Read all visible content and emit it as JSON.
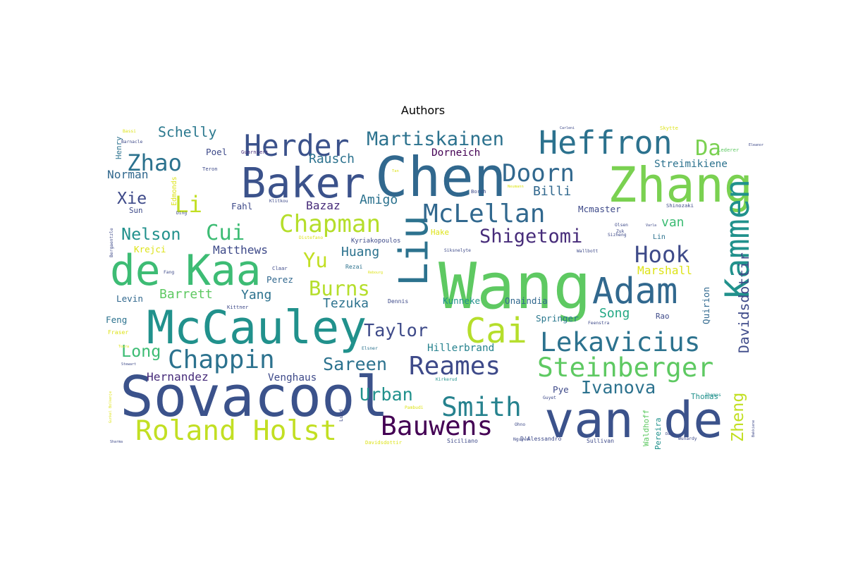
{
  "chart_data": {
    "type": "wordcloud",
    "title": "Authors",
    "colormap": "viridis",
    "words": [
      {
        "text": "Wang",
        "weight": 100,
        "color": "#5ec962"
      },
      {
        "text": "Sovacool",
        "weight": 88,
        "color": "#3b528b"
      },
      {
        "text": "Chen",
        "weight": 86,
        "color": "#31688e"
      },
      {
        "text": "van de",
        "weight": 78,
        "color": "#3b528b"
      },
      {
        "text": "Zhang",
        "weight": 76,
        "color": "#7ad151"
      },
      {
        "text": "McCauley",
        "weight": 72,
        "color": "#21918c"
      },
      {
        "text": "de Kaa",
        "weight": 66,
        "color": "#3dbc74"
      },
      {
        "text": "Baker",
        "weight": 65,
        "color": "#3b528b"
      },
      {
        "text": "Liu",
        "weight": 62,
        "color": "#2c728e"
      },
      {
        "text": "Adam",
        "weight": 56,
        "color": "#31688e"
      },
      {
        "text": "Cai",
        "weight": 54,
        "color": "#b5de2b"
      },
      {
        "text": "Kammen",
        "weight": 52,
        "color": "#21918c"
      },
      {
        "text": "Heffron",
        "weight": 50,
        "color": "#2c728e"
      },
      {
        "text": "Herder",
        "weight": 46,
        "color": "#3b528b"
      },
      {
        "text": "Roland Holst",
        "weight": 44,
        "color": "#c2df23"
      },
      {
        "text": "Bauwens",
        "weight": 42,
        "color": "#440154"
      },
      {
        "text": "Smith",
        "weight": 42,
        "color": "#26828e"
      },
      {
        "text": "Steinberger",
        "weight": 42,
        "color": "#5ec962"
      },
      {
        "text": "Lekavicius",
        "weight": 42,
        "color": "#2c728e"
      },
      {
        "text": "Chappin",
        "weight": 40,
        "color": "#2c728e"
      },
      {
        "text": "Reames",
        "weight": 40,
        "color": "#3e4a89"
      },
      {
        "text": "McLellan",
        "weight": 40,
        "color": "#31688e"
      },
      {
        "text": "Doorn",
        "weight": 38,
        "color": "#31688e"
      },
      {
        "text": "Chapman",
        "weight": 38,
        "color": "#b5de2b"
      },
      {
        "text": "Zhao",
        "weight": 36,
        "color": "#2c728e"
      },
      {
        "text": "Hook",
        "weight": 36,
        "color": "#3e4a89"
      },
      {
        "text": "Li",
        "weight": 36,
        "color": "#c2df23"
      },
      {
        "text": "Cui",
        "weight": 34,
        "color": "#3dbc74"
      },
      {
        "text": "Da",
        "weight": 34,
        "color": "#7ad151"
      },
      {
        "text": "Burns",
        "weight": 32,
        "color": "#b5de2b"
      },
      {
        "text": "Yu",
        "weight": 32,
        "color": "#c2df23"
      },
      {
        "text": "Shigetomi",
        "weight": 30,
        "color": "#472c7a"
      },
      {
        "text": "Martiskainen",
        "weight": 30,
        "color": "#2c728e"
      },
      {
        "text": "Urban",
        "weight": 28,
        "color": "#21918c"
      },
      {
        "text": "Taylor",
        "weight": 28,
        "color": "#3e4a89"
      },
      {
        "text": "Sareen",
        "weight": 28,
        "color": "#2c728e"
      },
      {
        "text": "Ivanova",
        "weight": 28,
        "color": "#2c728e"
      },
      {
        "text": "Long",
        "weight": 26,
        "color": "#3dbc74"
      },
      {
        "text": "Nelson",
        "weight": 26,
        "color": "#21918c"
      },
      {
        "text": "Xie",
        "weight": 26,
        "color": "#3e4a89"
      },
      {
        "text": "Zheng",
        "weight": 26,
        "color": "#c2df23"
      },
      {
        "text": "Davidsdottir",
        "weight": 22,
        "color": "#3e4a89"
      },
      {
        "text": "Schelly",
        "weight": 22,
        "color": "#2a788e"
      },
      {
        "text": "Barrett",
        "weight": 20,
        "color": "#5ec962"
      },
      {
        "text": "Rausch",
        "weight": 20,
        "color": "#2c728e"
      },
      {
        "text": "Amigo",
        "weight": 20,
        "color": "#2c728e"
      },
      {
        "text": "Tezuka",
        "weight": 20,
        "color": "#2c728e"
      },
      {
        "text": "Hernandez",
        "weight": 18,
        "color": "#472c7a"
      },
      {
        "text": "Song",
        "weight": 20,
        "color": "#22a884"
      },
      {
        "text": "Huang",
        "weight": 20,
        "color": "#2c728e"
      },
      {
        "text": "Norman",
        "weight": 18,
        "color": "#31688e"
      },
      {
        "text": "Yang",
        "weight": 20,
        "color": "#2c728e"
      },
      {
        "text": "Billi",
        "weight": 20,
        "color": "#31688e"
      },
      {
        "text": "van",
        "weight": 20,
        "color": "#3dbc74"
      },
      {
        "text": "Matthews",
        "weight": 18,
        "color": "#3e4a89"
      },
      {
        "text": "Streimikiene",
        "weight": 16,
        "color": "#2c728e"
      },
      {
        "text": "Bazaz",
        "weight": 18,
        "color": "#472c7a"
      },
      {
        "text": "Marshall",
        "weight": 18,
        "color": "#dde318"
      },
      {
        "text": "Hillerbrand",
        "weight": 16,
        "color": "#26828e"
      },
      {
        "text": "Dorneich",
        "weight": 16,
        "color": "#440154"
      },
      {
        "text": "Venghaus",
        "weight": 16,
        "color": "#3e4a89"
      },
      {
        "text": "Quirion",
        "weight": 14,
        "color": "#31688e"
      },
      {
        "text": "Springer",
        "weight": 14,
        "color": "#2a788e"
      },
      {
        "text": "Kunneke",
        "weight": 14,
        "color": "#21918c"
      },
      {
        "text": "Onaindia",
        "weight": 14,
        "color": "#31688e"
      },
      {
        "text": "Mcmaster",
        "weight": 14,
        "color": "#3e4a89"
      },
      {
        "text": "Poel",
        "weight": 14,
        "color": "#3e4a89"
      },
      {
        "text": "Fahl",
        "weight": 14,
        "color": "#3e4a89"
      },
      {
        "text": "Perez",
        "weight": 14,
        "color": "#31688e"
      },
      {
        "text": "Pye",
        "weight": 14,
        "color": "#3e4a89"
      },
      {
        "text": "Thomas",
        "weight": 12,
        "color": "#21918c"
      },
      {
        "text": "Levin",
        "weight": 14,
        "color": "#31688e"
      },
      {
        "text": "Feng",
        "weight": 14,
        "color": "#2c728e"
      },
      {
        "text": "Krejci",
        "weight": 14,
        "color": "#dde318"
      },
      {
        "text": "Hake",
        "weight": 12,
        "color": "#dde318"
      },
      {
        "text": "Sun",
        "weight": 12,
        "color": "#3e4a89"
      },
      {
        "text": "Rao",
        "weight": 12,
        "color": "#3e4a89"
      },
      {
        "text": "Lin",
        "weight": 11,
        "color": "#2c728e"
      },
      {
        "text": "Pereira",
        "weight": 12,
        "color": "#21918c"
      },
      {
        "text": "Waldhoff",
        "weight": 12,
        "color": "#5ec962"
      },
      {
        "text": "Henry",
        "weight": 12,
        "color": "#2c728e"
      },
      {
        "text": "Edmonds",
        "weight": 11,
        "color": "#dde318"
      },
      {
        "text": "Kyriakopoulos",
        "weight": 10,
        "color": "#3e4a89"
      },
      {
        "text": "Dennis",
        "weight": 9,
        "color": "#3e4a89"
      },
      {
        "text": "Fraser",
        "weight": 9,
        "color": "#dde318"
      },
      {
        "text": "Sullivan",
        "weight": 9,
        "color": "#3e4a89"
      },
      {
        "text": "Siciliano",
        "weight": 9,
        "color": "#3e4a89"
      },
      {
        "text": "D'Alessandro",
        "weight": 9,
        "color": "#3e4a89"
      },
      {
        "text": "Davidsdottir",
        "weight": 8,
        "color": "#dde318"
      },
      {
        "text": "Claar",
        "weight": 8,
        "color": "#3e4a89"
      },
      {
        "text": "Rezai",
        "weight": 9,
        "color": "#2c728e"
      },
      {
        "text": "Lund",
        "weight": 8,
        "color": "#3e4a89"
      },
      {
        "text": "Lederer",
        "weight": 8,
        "color": "#5ec962"
      },
      {
        "text": "Skytte",
        "weight": 8,
        "color": "#dde318"
      },
      {
        "text": "Shinozaki",
        "weight": 8,
        "color": "#3e4a89"
      },
      {
        "text": "Kittner",
        "weight": 8,
        "color": "#3e4a89"
      },
      {
        "text": "Guarnieri",
        "weight": 8,
        "color": "#472c7a"
      },
      {
        "text": "Teron",
        "weight": 8,
        "color": "#3e4a89"
      },
      {
        "text": "Borch",
        "weight": 8,
        "color": "#3e4a89"
      },
      {
        "text": "Wallbott",
        "weight": 7,
        "color": "#3e4a89"
      },
      {
        "text": "Elsner",
        "weight": 7,
        "color": "#2c728e"
      },
      {
        "text": "Ohno",
        "weight": 7,
        "color": "#3e4a89"
      },
      {
        "text": "Thomas",
        "weight": 7,
        "color": "#21918c"
      },
      {
        "text": "Feenstra",
        "weight": 7,
        "color": "#3e4a89"
      },
      {
        "text": "Bassi",
        "weight": 7,
        "color": "#dde318"
      },
      {
        "text": "Barnacle",
        "weight": 7,
        "color": "#3e4a89"
      },
      {
        "text": "Bergaentzle",
        "weight": 7,
        "color": "#3e4a89"
      },
      {
        "text": "Siksnelyte",
        "weight": 7,
        "color": "#3e4a89"
      },
      {
        "text": "Ding",
        "weight": 7,
        "color": "#3e4a89"
      },
      {
        "text": "Fang",
        "weight": 7,
        "color": "#3e4a89"
      },
      {
        "text": "Guyet",
        "weight": 7,
        "color": "#3e4a89"
      },
      {
        "text": "Pambudi",
        "weight": 7,
        "color": "#dde318"
      },
      {
        "text": "Kirkerud",
        "weight": 7,
        "color": "#21918c"
      },
      {
        "text": "Nguyen",
        "weight": 7,
        "color": "#3e4a89"
      },
      {
        "text": "Wunardy",
        "weight": 7,
        "color": "#3e4a89"
      },
      {
        "text": "Distefano",
        "weight": 7,
        "color": "#dde318"
      },
      {
        "text": "Olsen",
        "weight": 7,
        "color": "#3e4a89"
      },
      {
        "text": "Sizheng",
        "weight": 7,
        "color": "#3e4a89"
      },
      {
        "text": "Zuk",
        "weight": 7,
        "color": "#3e4a89"
      },
      {
        "text": "Klitkou",
        "weight": 7,
        "color": "#3e4a89"
      },
      {
        "text": "Neumann",
        "weight": 6,
        "color": "#dde318"
      },
      {
        "text": "Tan",
        "weight": 6,
        "color": "#dde318"
      },
      {
        "text": "Dang",
        "weight": 6,
        "color": "#3e4a89"
      },
      {
        "text": "Varla",
        "weight": 5,
        "color": "#3e4a89"
      },
      {
        "text": "Sharma",
        "weight": 5,
        "color": "#3e4a89"
      },
      {
        "text": "Gunkel Bolkenje",
        "weight": 5,
        "color": "#dde318"
      },
      {
        "text": "Toura",
        "weight": 5,
        "color": "#dde318"
      },
      {
        "text": "Stewart",
        "weight": 5,
        "color": "#3e4a89"
      },
      {
        "text": "Rebourg",
        "weight": 5,
        "color": "#dde318"
      },
      {
        "text": "Carleni",
        "weight": 5,
        "color": "#3e4a89"
      },
      {
        "text": "Bakkiene",
        "weight": 5,
        "color": "#3e4a89"
      },
      {
        "text": "Eleanor",
        "weight": 5,
        "color": "#3e4a89"
      }
    ]
  }
}
